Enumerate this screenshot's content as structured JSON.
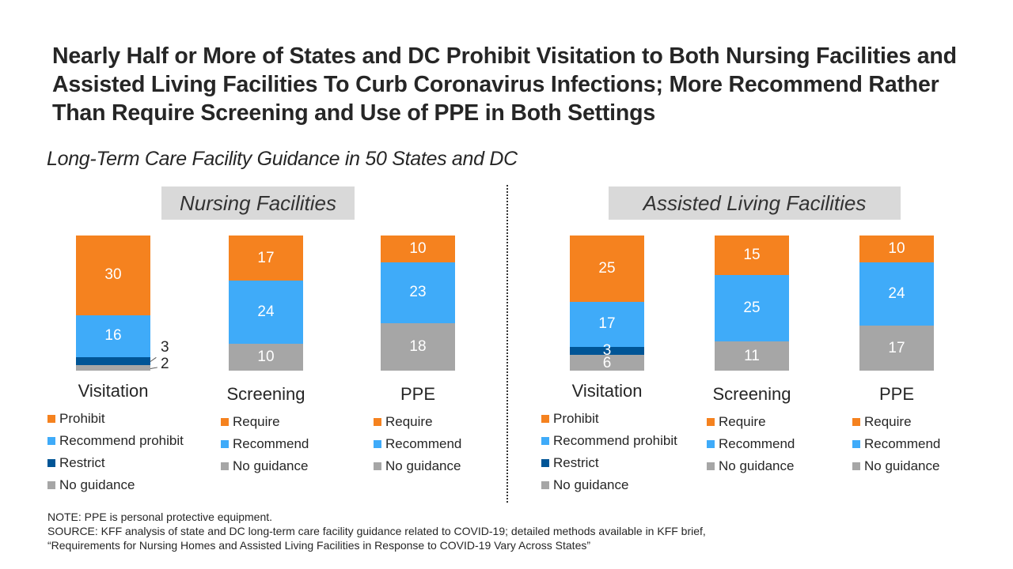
{
  "title": "Nearly Half or More of States and DC Prohibit Visitation to Both Nursing Facilities and Assisted Living Facilities To Curb Coronavirus Infections; More Recommend Rather Than Require Screening and Use of PPE in Both Settings",
  "subtitle": "Long-Term Care Facility Guidance in 50 States and DC",
  "panels": [
    "Nursing Facilities",
    "Assisted Living Facilities"
  ],
  "colors": {
    "prohibit": "#F5821F",
    "recommend": "#3FABF9",
    "restrict": "#005596",
    "no_guidance": "#A6A6A6"
  },
  "chart_data": [
    {
      "type": "bar",
      "stacked": true,
      "panel": "Nursing Facilities",
      "category": "Visitation",
      "series": [
        {
          "name": "Prohibit",
          "value": 30
        },
        {
          "name": "Recommend prohibit",
          "value": 16
        },
        {
          "name": "Restrict",
          "value": 3
        },
        {
          "name": "No guidance",
          "value": 2
        }
      ]
    },
    {
      "type": "bar",
      "stacked": true,
      "panel": "Nursing Facilities",
      "category": "Screening",
      "series": [
        {
          "name": "Require",
          "value": 17
        },
        {
          "name": "Recommend",
          "value": 24
        },
        {
          "name": "No guidance",
          "value": 10
        }
      ]
    },
    {
      "type": "bar",
      "stacked": true,
      "panel": "Nursing Facilities",
      "category": "PPE",
      "series": [
        {
          "name": "Require",
          "value": 10
        },
        {
          "name": "Recommend",
          "value": 23
        },
        {
          "name": "No guidance",
          "value": 18
        }
      ]
    },
    {
      "type": "bar",
      "stacked": true,
      "panel": "Assisted Living Facilities",
      "category": "Visitation",
      "series": [
        {
          "name": "Prohibit",
          "value": 25
        },
        {
          "name": "Recommend prohibit",
          "value": 17
        },
        {
          "name": "Restrict",
          "value": 3
        },
        {
          "name": "No guidance",
          "value": 6
        }
      ]
    },
    {
      "type": "bar",
      "stacked": true,
      "panel": "Assisted Living Facilities",
      "category": "Screening",
      "series": [
        {
          "name": "Require",
          "value": 15
        },
        {
          "name": "Recommend",
          "value": 25
        },
        {
          "name": "No guidance",
          "value": 11
        }
      ]
    },
    {
      "type": "bar",
      "stacked": true,
      "panel": "Assisted Living Facilities",
      "category": "PPE",
      "series": [
        {
          "name": "Require",
          "value": 10
        },
        {
          "name": "Recommend",
          "value": 24
        },
        {
          "name": "No guidance",
          "value": 17
        }
      ]
    }
  ],
  "note": "NOTE: PPE is personal protective equipment.",
  "source_line1": "SOURCE: KFF analysis of state and DC long-term care facility guidance related to COVID-19; detailed methods available in KFF brief,",
  "source_line2": "“Requirements for Nursing Homes and Assisted Living Facilities in Response to COVID-19 Vary Across States”"
}
